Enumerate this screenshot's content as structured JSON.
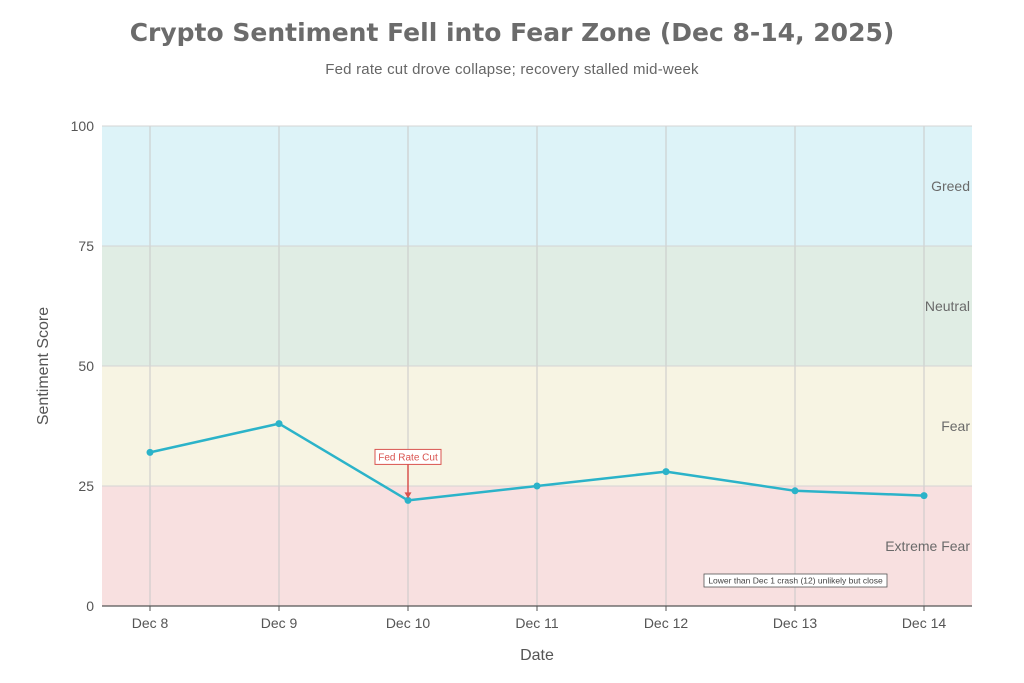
{
  "chart_data": {
    "type": "line",
    "title": "Crypto Sentiment Fell into Fear Zone (Dec 8-14, 2025)",
    "subtitle": "Fed rate cut drove collapse; recovery stalled mid-week",
    "xlabel": "Date",
    "ylabel": "Sentiment Score",
    "ylim": [
      0,
      100
    ],
    "yticks": [
      "0",
      "25",
      "50",
      "75",
      "100"
    ],
    "categories": [
      "Dec 8",
      "Dec 9",
      "Dec 10",
      "Dec 11",
      "Dec 12",
      "Dec 13",
      "Dec 14"
    ],
    "series": [
      {
        "name": "Sentiment Score",
        "values": [
          32,
          38,
          22,
          25,
          28,
          24,
          23
        ],
        "color": "#2bb3c9"
      }
    ],
    "zones": [
      {
        "label": "Extreme Fear",
        "from": 0,
        "to": 25,
        "color": "#f8e0e0"
      },
      {
        "label": "Fear",
        "from": 25,
        "to": 50,
        "color": "#f7f4e3"
      },
      {
        "label": "Neutral",
        "from": 50,
        "to": 75,
        "color": "#e0ede4"
      },
      {
        "label": "Greed",
        "from": 75,
        "to": 100,
        "color": "#ddf3f8"
      }
    ],
    "annotations": [
      {
        "text": "Fed Rate Cut",
        "category": "Dec 10",
        "value": 22,
        "color": "#d9534f"
      }
    ],
    "note": "Lower than Dec 1 crash (12) unlikely but close"
  }
}
